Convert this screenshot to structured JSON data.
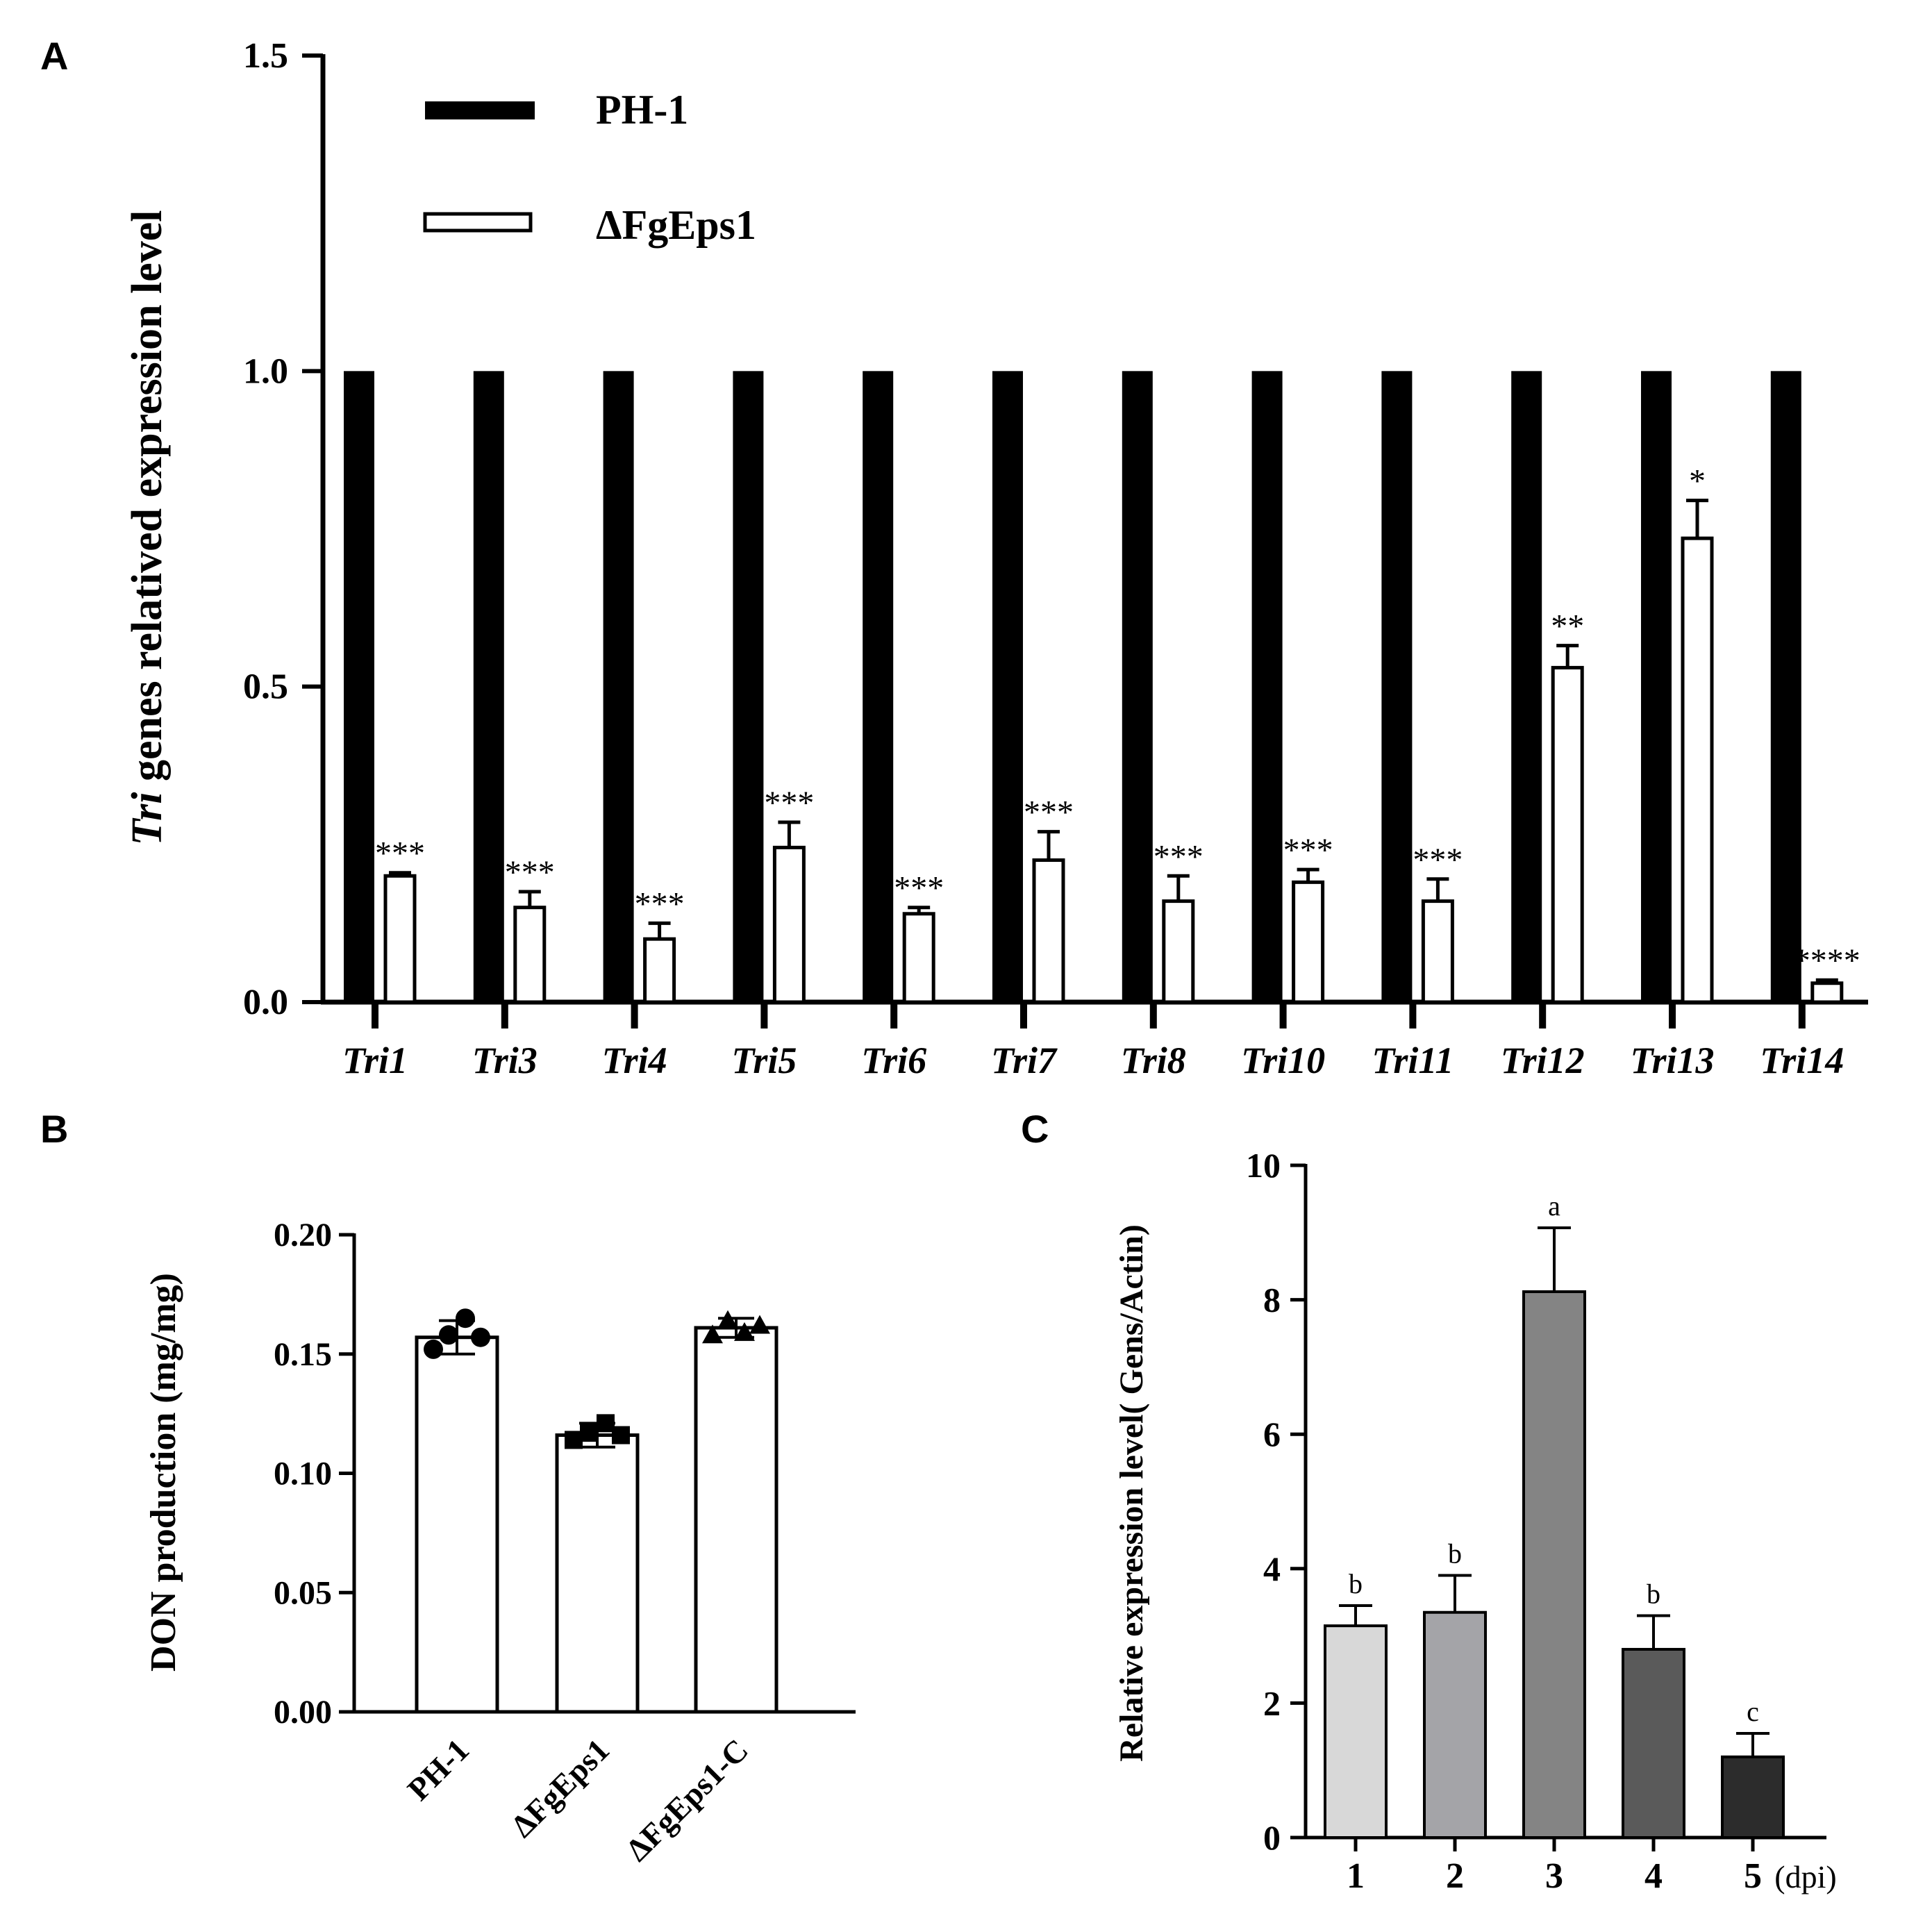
{
  "panel_labels": {
    "a": "A",
    "b": "B",
    "c": "C"
  },
  "colors": {
    "ink": "#000000",
    "pal_1": "#d8d8d8",
    "pal_2": "#a4a4a8",
    "pal_3": "#848484",
    "pal_4": "#5a5a5a",
    "pal_5": "#2c2c2c"
  },
  "chart_data": [
    {
      "panel": "A",
      "type": "bar",
      "ylabel_italic": "Tri",
      "ylabel_rest": " genes  relatived expression level",
      "ylim": [
        0,
        1.5
      ],
      "yticks": [
        "0.0",
        "0.5",
        "1.0",
        "1.5"
      ],
      "categories": [
        "Tri1",
        "Tri3",
        "Tri4",
        "Tri5",
        "Tri6",
        "Tri7",
        "Tri8",
        "Tri10",
        "Tri11",
        "Tri12",
        "Tri13",
        "Tri14"
      ],
      "series": [
        {
          "name": "PH-1",
          "values": [
            1,
            1,
            1,
            1,
            1,
            1,
            1,
            1,
            1,
            1,
            1,
            1
          ]
        },
        {
          "name": "ΔFgEps1",
          "values": [
            0.2,
            0.15,
            0.1,
            0.245,
            0.14,
            0.225,
            0.16,
            0.19,
            0.16,
            0.53,
            0.735,
            0.03
          ],
          "errors": [
            0.005,
            0.025,
            0.025,
            0.04,
            0.01,
            0.045,
            0.04,
            0.02,
            0.035,
            0.035,
            0.06,
            0.005
          ]
        }
      ],
      "annotations": [
        "***",
        "***",
        "***",
        "***",
        "***",
        "***",
        "***",
        "***",
        "***",
        "**",
        "*",
        "****"
      ],
      "legend": [
        "PH-1",
        "ΔFgEps1"
      ],
      "legend_placement": "top-left"
    },
    {
      "panel": "B",
      "type": "bar",
      "ylabel": "DON production (mg/mg)",
      "ylim": [
        0,
        0.2
      ],
      "yticks": [
        "0.00",
        "0.05",
        "0.10",
        "0.15",
        "0.20"
      ],
      "categories": [
        "PH-1",
        "ΔFgEps1",
        "ΔFgEps1-C"
      ],
      "values": [
        0.157,
        0.116,
        0.161
      ],
      "errors": [
        0.007,
        0.005,
        0.004
      ],
      "markers": [
        "circle",
        "square",
        "triangle"
      ],
      "points": [
        [
          0.152,
          0.158,
          0.165,
          0.157
        ],
        [
          0.114,
          0.117,
          0.121,
          0.116
        ],
        [
          0.158,
          0.164,
          0.159,
          0.162
        ]
      ]
    },
    {
      "panel": "C",
      "type": "bar",
      "ylabel": "Relative expression level( Gens/Actin)",
      "ylim": [
        0,
        10
      ],
      "yticks": [
        "0",
        "2",
        "4",
        "6",
        "8",
        "10"
      ],
      "categories": [
        "1",
        "2",
        "3",
        "4",
        "5"
      ],
      "xunit": "(dpi)",
      "values": [
        3.15,
        3.35,
        8.12,
        2.8,
        1.2
      ],
      "errors": [
        0.3,
        0.55,
        0.95,
        0.5,
        0.35
      ],
      "letters": [
        "b",
        "b",
        "a",
        "b",
        "c"
      ]
    }
  ]
}
